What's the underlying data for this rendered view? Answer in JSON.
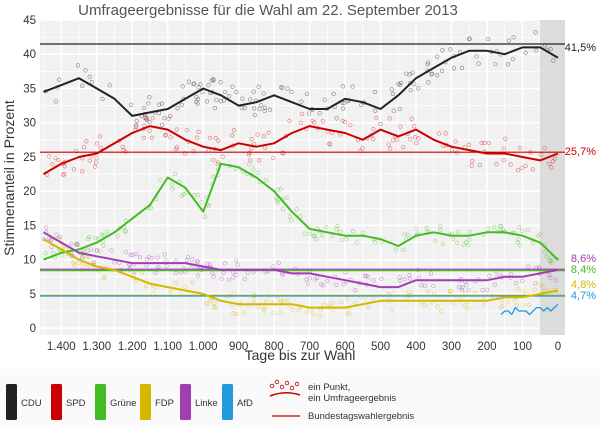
{
  "chart_data": {
    "type": "scatter",
    "title": "Umfrageergebnisse für die Wahl am 22. September 2013",
    "xlabel": "Tage bis zur Wahl",
    "ylabel": "Stimmenanteil in Prozent",
    "xlim": [
      1460,
      -20
    ],
    "ylim": [
      -1,
      45
    ],
    "x_ticks": [
      1400,
      1300,
      1200,
      1100,
      1000,
      900,
      800,
      700,
      600,
      500,
      400,
      300,
      200,
      100,
      0
    ],
    "x_tick_labels": [
      "1.400",
      "1.300",
      "1.200",
      "1.100",
      "1.000",
      "900",
      "800",
      "700",
      "600",
      "500",
      "400",
      "300",
      "200",
      "100",
      "0"
    ],
    "y_ticks": [
      0,
      5,
      10,
      15,
      20,
      25,
      30,
      35,
      40,
      45
    ],
    "grid": true,
    "series": [
      {
        "name": "CDU",
        "color": "#222222",
        "result": 41.5,
        "result_label": "41,5%",
        "x": [
          1450,
          1400,
          1350,
          1300,
          1250,
          1200,
          1150,
          1100,
          1050,
          1000,
          950,
          900,
          850,
          800,
          750,
          700,
          650,
          600,
          550,
          500,
          450,
          400,
          350,
          300,
          250,
          200,
          150,
          100,
          50,
          0
        ],
        "trend": [
          34.5,
          35.5,
          36.5,
          35,
          33.5,
          31,
          31.5,
          32,
          33.5,
          35,
          34,
          32.5,
          33,
          34,
          33,
          32,
          32,
          33.5,
          33,
          32,
          34,
          36.5,
          38,
          39.5,
          40.5,
          40.5,
          40,
          41,
          41,
          39.5
        ]
      },
      {
        "name": "SPD",
        "color": "#cc0000",
        "result": 25.7,
        "result_label": "25,7%",
        "x": [
          1450,
          1400,
          1350,
          1300,
          1250,
          1200,
          1150,
          1100,
          1050,
          1000,
          950,
          900,
          850,
          800,
          750,
          700,
          650,
          600,
          550,
          500,
          450,
          400,
          350,
          300,
          250,
          200,
          150,
          100,
          50,
          0
        ],
        "trend": [
          22.5,
          24,
          25,
          25.5,
          27,
          28.5,
          29.5,
          29,
          27.5,
          26.5,
          26,
          27,
          26.5,
          27,
          28.5,
          29.5,
          29,
          28.5,
          27.5,
          29,
          28,
          29,
          27.5,
          26.5,
          26,
          25.5,
          25.5,
          25,
          24.5,
          25.5
        ]
      },
      {
        "name": "Grüne",
        "color": "#44bb22",
        "result": 8.4,
        "result_label": "8,4%",
        "x": [
          1450,
          1400,
          1350,
          1300,
          1250,
          1200,
          1150,
          1100,
          1050,
          1000,
          950,
          900,
          850,
          800,
          750,
          700,
          650,
          600,
          550,
          500,
          450,
          400,
          350,
          300,
          250,
          200,
          150,
          100,
          50,
          0
        ],
        "trend": [
          10,
          11,
          11.5,
          12.5,
          14,
          16,
          18,
          22,
          20.5,
          17,
          24,
          23.5,
          22,
          20,
          17,
          14.5,
          14,
          13.5,
          13.5,
          13,
          12,
          13.5,
          14,
          13.5,
          13.5,
          14,
          14,
          13.5,
          12.5,
          10
        ]
      },
      {
        "name": "FDP",
        "color": "#d4b800",
        "result": 4.8,
        "result_label": "4,8%",
        "x": [
          1450,
          1400,
          1350,
          1300,
          1250,
          1200,
          1150,
          1100,
          1050,
          1000,
          950,
          900,
          850,
          800,
          750,
          700,
          650,
          600,
          550,
          500,
          450,
          400,
          350,
          300,
          250,
          200,
          150,
          100,
          50,
          0
        ],
        "trend": [
          13,
          11.5,
          10,
          9,
          8.5,
          7.5,
          6.5,
          6,
          5.5,
          5,
          4,
          3.5,
          3.5,
          3.5,
          3.5,
          3,
          3,
          3,
          3.5,
          4,
          4,
          4,
          4,
          4,
          4,
          4,
          4.5,
          4.5,
          5,
          5.5
        ]
      },
      {
        "name": "Linke",
        "color": "#a040b0",
        "result": 8.6,
        "result_label": "8,6%",
        "x": [
          1450,
          1400,
          1350,
          1300,
          1250,
          1200,
          1150,
          1100,
          1050,
          1000,
          950,
          900,
          850,
          800,
          750,
          700,
          650,
          600,
          550,
          500,
          450,
          400,
          350,
          300,
          250,
          200,
          150,
          100,
          50,
          0
        ],
        "trend": [
          14,
          12.5,
          11,
          10.5,
          10,
          9.5,
          9.5,
          9.5,
          9.5,
          9,
          8.5,
          8.5,
          8.5,
          8.5,
          8,
          8,
          7.5,
          7,
          6.5,
          6,
          6,
          7,
          7,
          7,
          7,
          7,
          7.5,
          7.5,
          8,
          8.5
        ]
      },
      {
        "name": "AfD",
        "color": "#2299dd",
        "result": 4.7,
        "result_label": "4,7%",
        "x": [
          160,
          150,
          140,
          130,
          120,
          110,
          100,
          90,
          80,
          70,
          60,
          50,
          40,
          30,
          20,
          10,
          0
        ],
        "trend": [
          2,
          2.5,
          2.5,
          2,
          3,
          2.5,
          2.5,
          2.5,
          2,
          2.5,
          3,
          3,
          2.5,
          3,
          2.5,
          3,
          3.5
        ]
      }
    ],
    "legend": {
      "placement": "bottom",
      "entries": [
        "CDU",
        "SPD",
        "Grüne",
        "FDP",
        "Linke",
        "AfD"
      ],
      "point_label": "ein Punkt, ein Umfrageergebnis",
      "line_label": "Bundestagswahlergebnis"
    }
  }
}
